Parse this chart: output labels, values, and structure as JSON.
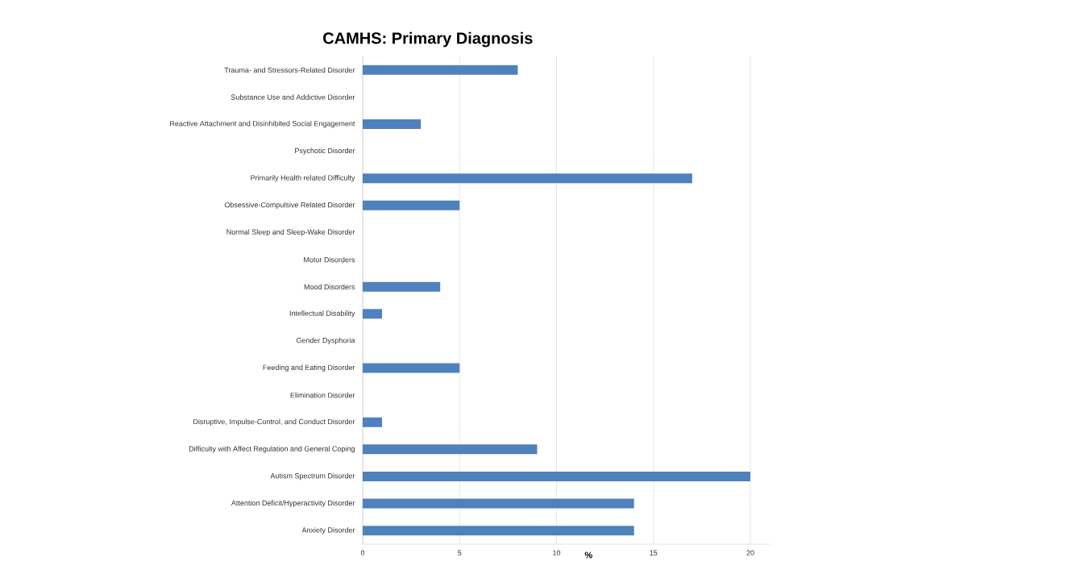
{
  "chart_data": {
    "type": "bar",
    "orientation": "horizontal",
    "title": "CAMHS: Primary Diagnosis",
    "xlabel": "%",
    "categories": [
      "Trauma- and Stressors-Related Disorder",
      "Substance Use and Addictive Disorder",
      "Reactive Attachment and Disinhibited Social Engagement",
      "Psychotic Disorder",
      "Primarily Health related Difficulty",
      "Obsessive-Compulsive Related Disorder",
      "Normal Sleep and Sleep-Wake Disorder",
      "Motor Disorders",
      "Mood Disorders",
      "Intellectual Disability",
      "Gender Dysphoria",
      "Feeding and Eating Disorder",
      "Elimination Disorder",
      "Disruptive, Impulse-Control, and Conduct Disorder",
      "Difficulty with Affect Regulation and General Coping",
      "Autism Spectrum Disorder",
      "Attention Deficit/Hyperactivity Disorder",
      "Anxiety Disorder"
    ],
    "values": [
      8,
      0,
      3,
      0,
      17,
      5,
      0,
      0,
      4,
      1,
      0,
      5,
      0,
      1,
      9,
      20,
      14,
      14
    ],
    "color": "#4f81bd",
    "xlim": [
      0,
      21
    ],
    "xticks": [
      0,
      5,
      10,
      15,
      20
    ],
    "grid": "x"
  }
}
